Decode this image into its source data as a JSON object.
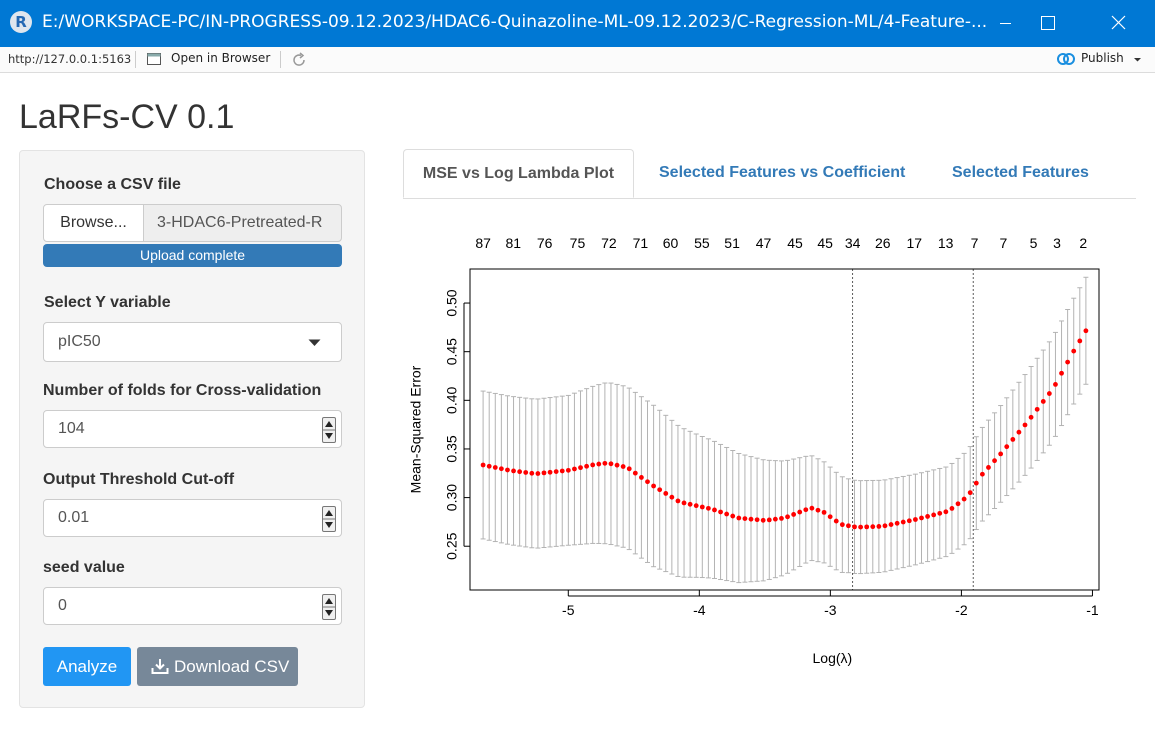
{
  "window": {
    "title": "E:/WORKSPACE-PC/IN-PROGRESS-09.12.2023/HDAC6-Quinazoline-ML-09.12.2023/C-Regression-ML/4-Feature-...",
    "logo_text": "R"
  },
  "toolbar": {
    "url": "http://127.0.0.1:5163",
    "open_in_browser": "Open in Browser",
    "publish": "Publish"
  },
  "app": {
    "title": "LaRFs-CV 0.1"
  },
  "sidebar": {
    "file_label": "Choose a CSV file",
    "browse_label": "Browse...",
    "file_name": "3-HDAC6-Pretreated-R",
    "upload_status": "Upload complete",
    "y_label": "Select Y variable",
    "y_value": "pIC50",
    "folds_label": "Number of folds for Cross-validation",
    "folds_value": "104",
    "threshold_label": "Output Threshold Cut-off",
    "threshold_value": "0.01",
    "seed_label": "seed value",
    "seed_value": "0",
    "analyze_label": "Analyze",
    "download_label": "Download CSV"
  },
  "tabs": [
    {
      "label": "MSE vs Log Lambda Plot",
      "active": true
    },
    {
      "label": "Selected Features vs Coefficient",
      "active": false
    },
    {
      "label": "Selected Features",
      "active": false
    }
  ],
  "chart_data": {
    "type": "scatter",
    "title": "",
    "xlabel": "Log(λ)",
    "ylabel": "Mean-Squared Error",
    "xlim": [
      -5.75,
      -0.95
    ],
    "ylim": [
      0.205,
      0.535
    ],
    "xticks": [
      -5,
      -4,
      -3,
      -2,
      -1
    ],
    "yticks": [
      0.25,
      0.3,
      0.35,
      0.4,
      0.45,
      0.5
    ],
    "top_axis_labels": [
      {
        "x": -5.65,
        "label": "87"
      },
      {
        "x": -5.42,
        "label": "81"
      },
      {
        "x": -5.18,
        "label": "76"
      },
      {
        "x": -4.93,
        "label": "75"
      },
      {
        "x": -4.69,
        "label": "72"
      },
      {
        "x": -4.45,
        "label": "71"
      },
      {
        "x": -4.22,
        "label": "60"
      },
      {
        "x": -3.98,
        "label": "55"
      },
      {
        "x": -3.75,
        "label": "51"
      },
      {
        "x": -3.51,
        "label": "47"
      },
      {
        "x": -3.27,
        "label": "45"
      },
      {
        "x": -3.04,
        "label": "45"
      },
      {
        "x": -2.83,
        "label": "34"
      },
      {
        "x": -2.6,
        "label": "26"
      },
      {
        "x": -2.36,
        "label": "17"
      },
      {
        "x": -2.12,
        "label": "13"
      },
      {
        "x": -1.9,
        "label": "7"
      },
      {
        "x": -1.68,
        "label": "7"
      },
      {
        "x": -1.45,
        "label": "5"
      },
      {
        "x": -1.27,
        "label": "3"
      },
      {
        "x": -1.07,
        "label": "2"
      }
    ],
    "vlines": [
      -2.83,
      -1.91
    ],
    "point_color": "#ff0000",
    "errorbar_color": "#b3b3b3",
    "mse_curve": [
      [
        -5.65,
        0.3335
      ],
      [
        -5.45,
        0.328
      ],
      [
        -5.25,
        0.3245
      ],
      [
        -5.0,
        0.328
      ],
      [
        -4.8,
        0.334
      ],
      [
        -4.7,
        0.3355
      ],
      [
        -4.55,
        0.331
      ],
      [
        -4.35,
        0.312
      ],
      [
        -4.15,
        0.2955
      ],
      [
        -3.9,
        0.288
      ],
      [
        -3.7,
        0.279
      ],
      [
        -3.5,
        0.2765
      ],
      [
        -3.35,
        0.279
      ],
      [
        -3.15,
        0.2895
      ],
      [
        -3.05,
        0.285
      ],
      [
        -2.92,
        0.2725
      ],
      [
        -2.8,
        0.2695
      ],
      [
        -2.6,
        0.2705
      ],
      [
        -2.35,
        0.2775
      ],
      [
        -2.1,
        0.286
      ],
      [
        -1.95,
        0.3015
      ],
      [
        -1.85,
        0.3225
      ],
      [
        -1.7,
        0.345
      ],
      [
        -1.5,
        0.377
      ],
      [
        -1.3,
        0.412
      ],
      [
        -1.15,
        0.449
      ],
      [
        -1.05,
        0.4715
      ]
    ],
    "se_curve": [
      [
        -5.65,
        0.076
      ],
      [
        -5.0,
        0.077
      ],
      [
        -4.7,
        0.083
      ],
      [
        -4.35,
        0.083
      ],
      [
        -4.0,
        0.073
      ],
      [
        -3.5,
        0.062
      ],
      [
        -3.15,
        0.054
      ],
      [
        -2.85,
        0.048
      ],
      [
        -2.5,
        0.047
      ],
      [
        -2.1,
        0.046
      ],
      [
        -1.85,
        0.048
      ],
      [
        -1.5,
        0.052
      ],
      [
        -1.05,
        0.055
      ]
    ]
  }
}
